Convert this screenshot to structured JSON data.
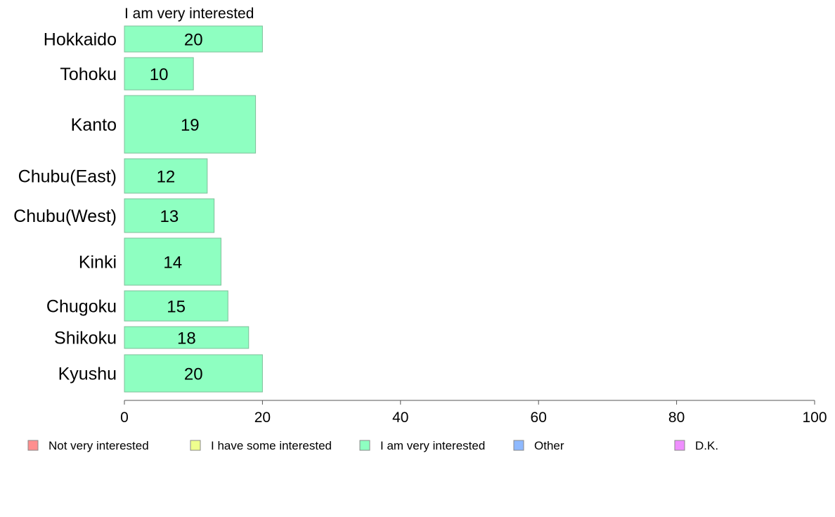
{
  "chart_data": {
    "type": "bar",
    "orientation": "horizontal",
    "title": "I am very interested",
    "categories": [
      "Hokkaido",
      "Tohoku",
      "Kanto",
      "Chubu(East)",
      "Chubu(West)",
      "Kinki",
      "Chugoku",
      "Shikoku",
      "Kyushu"
    ],
    "series": [
      {
        "name": "I am very interested",
        "values": [
          20,
          10,
          19,
          12,
          13,
          14,
          15,
          18,
          20
        ],
        "data_labels": [
          "20",
          "10",
          "19",
          "12",
          "13",
          "14",
          "15",
          "18",
          "20"
        ],
        "color": "#8effc1"
      }
    ],
    "xlim": [
      0,
      100
    ],
    "x_ticks": [
      0,
      20,
      40,
      60,
      80,
      100
    ],
    "x_tick_labels": [
      "0",
      "20",
      "40",
      "60",
      "80",
      "100"
    ],
    "grid": false,
    "legend_position": "bottom",
    "legend": [
      {
        "label": "Not very interested",
        "color": "#ff8e8e"
      },
      {
        "label": "I have some interested",
        "color": "#efff8e"
      },
      {
        "label": "I am very interested",
        "color": "#8effc1"
      },
      {
        "label": "Other",
        "color": "#8eb9ff"
      },
      {
        "label": "D.K.",
        "color": "#ef8eff"
      }
    ]
  }
}
